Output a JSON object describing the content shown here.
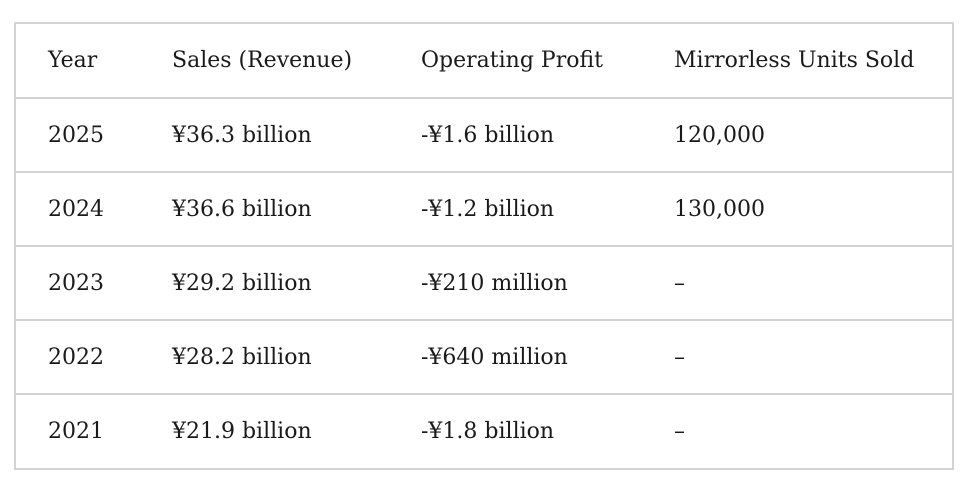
{
  "table": {
    "headers": [
      "Year",
      "Sales (Revenue)",
      "Operating Profit",
      "Mirrorless Units Sold"
    ],
    "rows": [
      [
        "2025",
        "¥36.3 billion",
        "-¥1.6 billion",
        "120,000"
      ],
      [
        "2024",
        "¥36.6 billion",
        "-¥1.2 billion",
        "130,000"
      ],
      [
        "2023",
        "¥29.2 billion",
        "-¥210 million",
        "–"
      ],
      [
        "2022",
        "¥28.2 billion",
        "-¥640 million",
        "–"
      ],
      [
        "2021",
        "¥21.9 billion",
        "-¥1.8 billion",
        "–"
      ]
    ]
  }
}
